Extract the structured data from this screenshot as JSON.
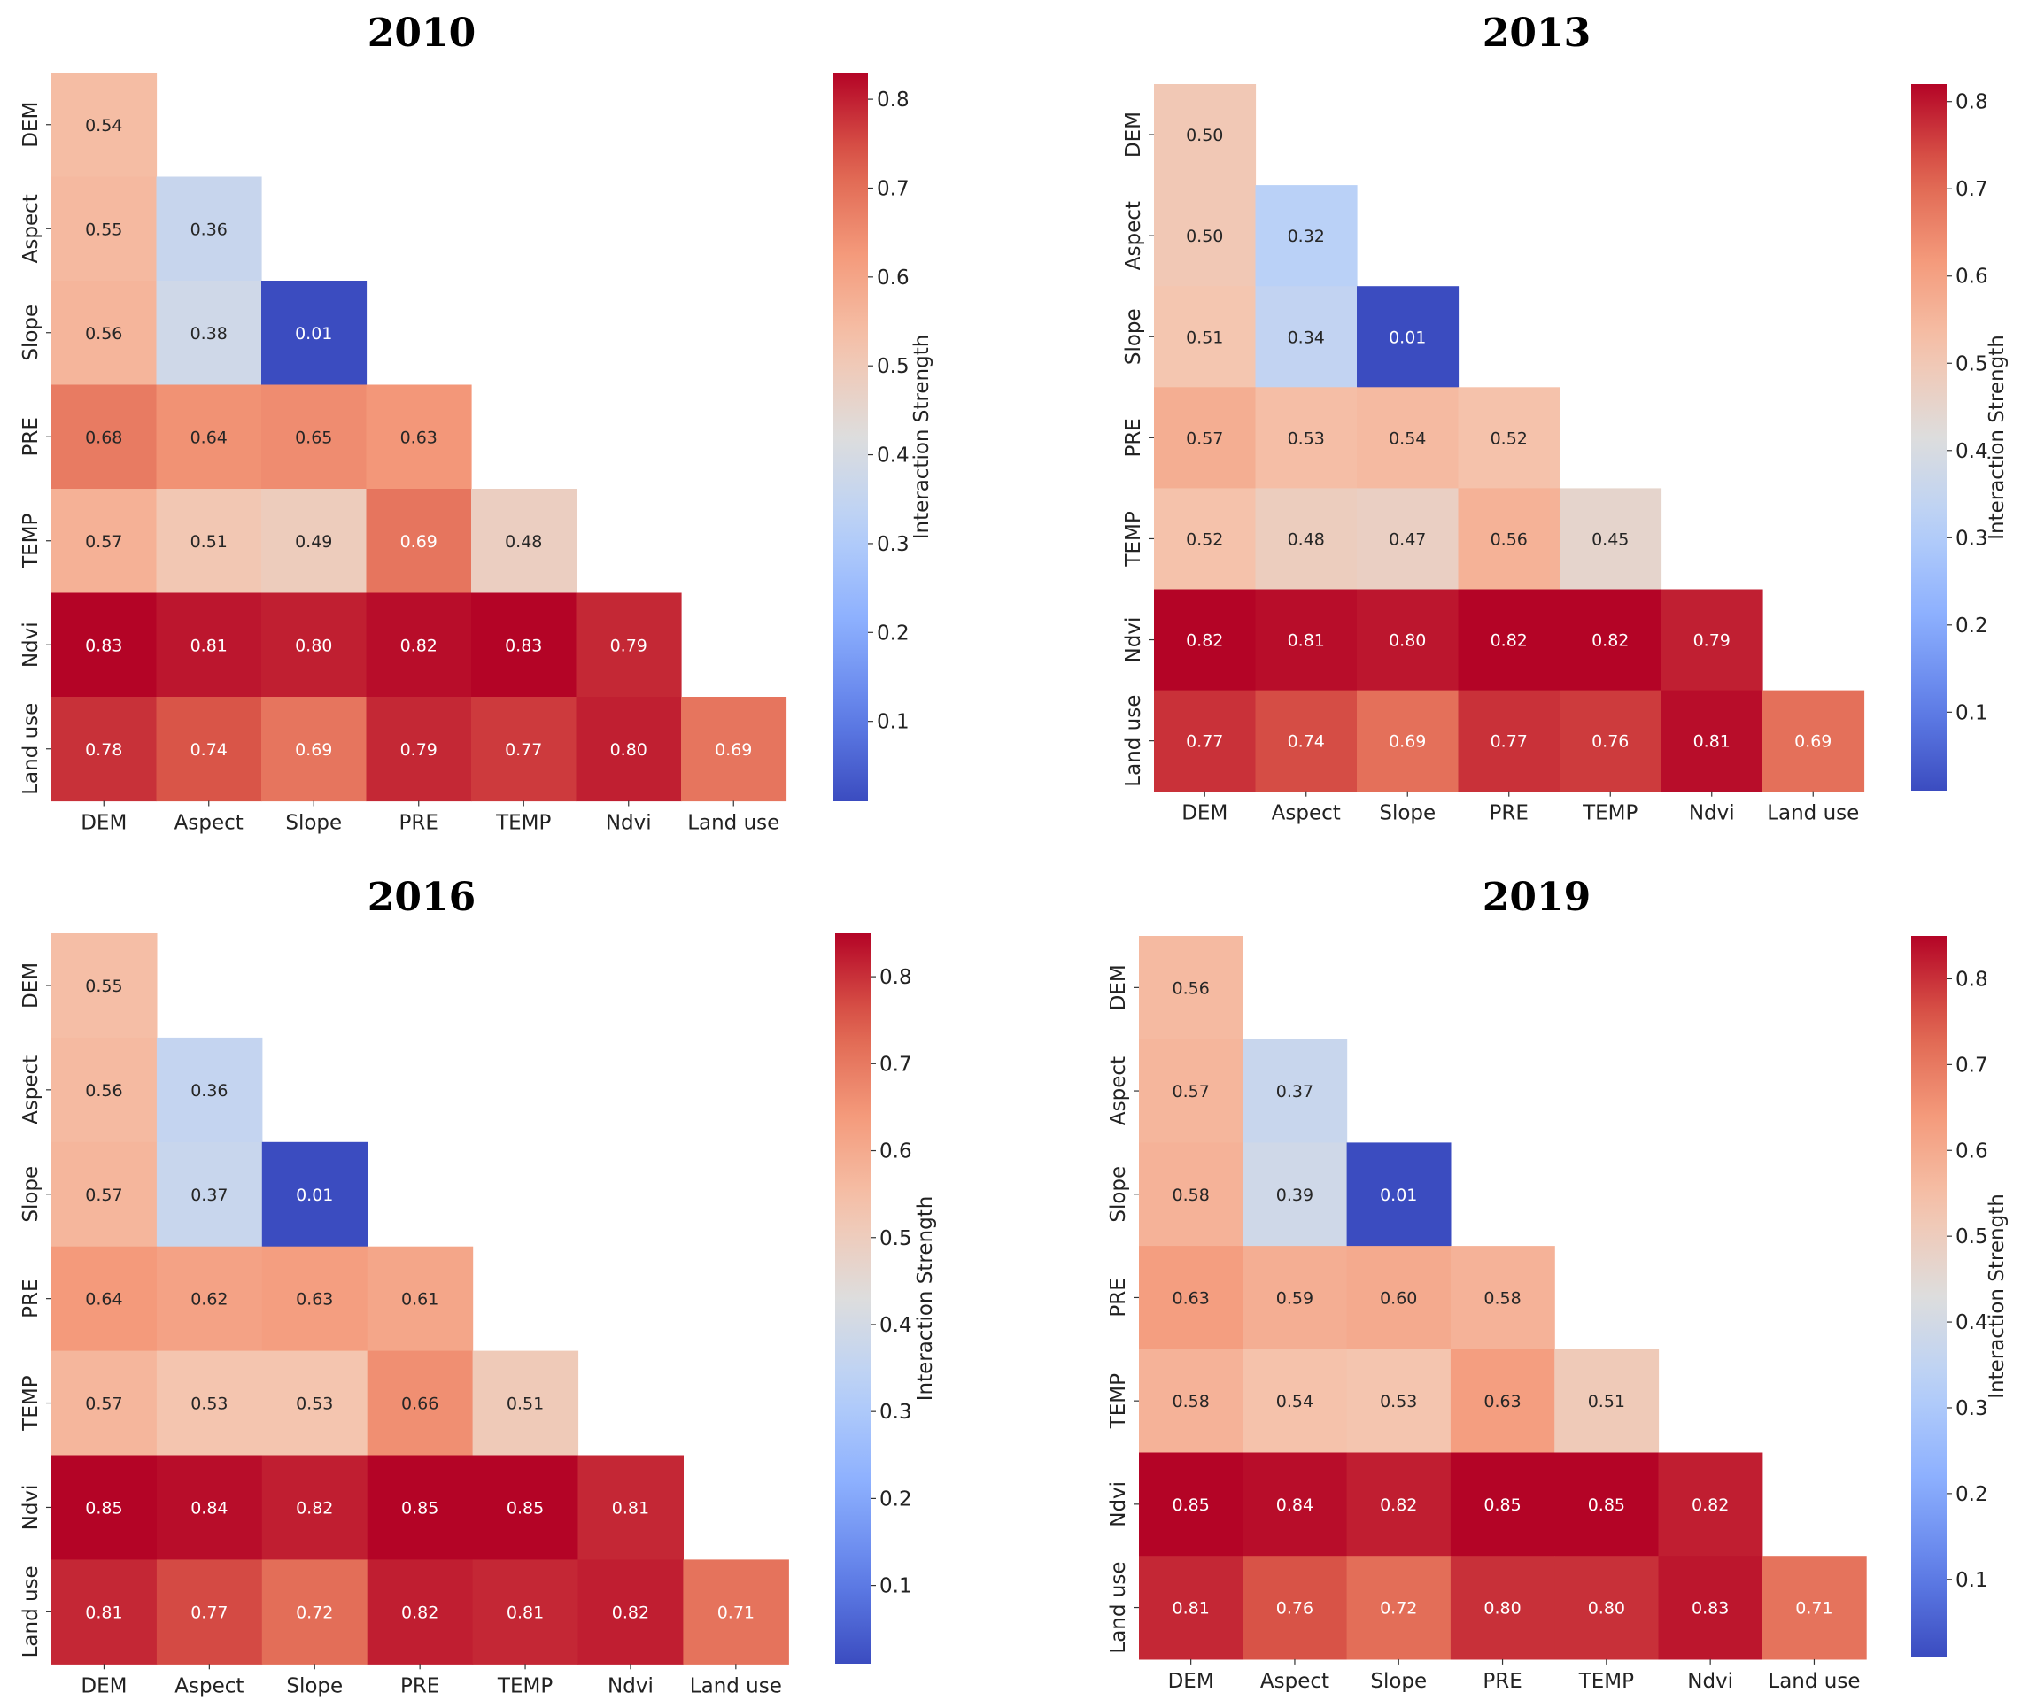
{
  "chart_data": [
    {
      "type": "heatmap",
      "title": "2010",
      "categories": [
        "DEM",
        "Aspect",
        "Slope",
        "PRE",
        "TEMP",
        "Ndvi",
        "Land use"
      ],
      "values": [
        [
          0.54
        ],
        [
          0.55,
          0.36
        ],
        [
          0.56,
          0.38,
          0.01
        ],
        [
          0.68,
          0.64,
          0.65,
          0.63
        ],
        [
          0.57,
          0.51,
          0.49,
          0.69,
          0.48
        ],
        [
          0.83,
          0.81,
          0.8,
          0.82,
          0.83,
          0.79
        ],
        [
          0.78,
          0.74,
          0.69,
          0.79,
          0.77,
          0.8,
          0.69
        ]
      ],
      "value_labels": [
        [
          "0.54"
        ],
        [
          "0.55",
          "0.36"
        ],
        [
          "0.56",
          "0.38",
          "0.01"
        ],
        [
          "0.68",
          "0.64",
          "0.65",
          "0.63"
        ],
        [
          "0.57",
          "0.51",
          "0.49",
          "0.69",
          "0.48"
        ],
        [
          "0.83",
          "0.81",
          "0.80",
          "0.82",
          "0.83",
          "0.79"
        ],
        [
          "0.78",
          "0.74",
          "0.69",
          "0.79",
          "0.77",
          "0.80",
          "0.69"
        ]
      ],
      "colorbar": {
        "label": "Interaction Strength",
        "range": [
          0.01,
          0.83
        ],
        "ticks": [
          "0.1",
          "0.2",
          "0.3",
          "0.4",
          "0.5",
          "0.6",
          "0.7",
          "0.8"
        ],
        "colormap": "coolwarm"
      }
    },
    {
      "type": "heatmap",
      "title": "2013",
      "categories": [
        "DEM",
        "Aspect",
        "Slope",
        "PRE",
        "TEMP",
        "Ndvi",
        "Land use"
      ],
      "values": [
        [
          0.5
        ],
        [
          0.5,
          0.32
        ],
        [
          0.51,
          0.34,
          0.01
        ],
        [
          0.57,
          0.53,
          0.54,
          0.52
        ],
        [
          0.52,
          0.48,
          0.47,
          0.56,
          0.45
        ],
        [
          0.82,
          0.81,
          0.8,
          0.82,
          0.82,
          0.79
        ],
        [
          0.77,
          0.74,
          0.69,
          0.77,
          0.76,
          0.81,
          0.69
        ]
      ],
      "value_labels": [
        [
          "0.50"
        ],
        [
          "0.50",
          "0.32"
        ],
        [
          "0.51",
          "0.34",
          "0.01"
        ],
        [
          "0.57",
          "0.53",
          "0.54",
          "0.52"
        ],
        [
          "0.52",
          "0.48",
          "0.47",
          "0.56",
          "0.45"
        ],
        [
          "0.82",
          "0.81",
          "0.80",
          "0.82",
          "0.82",
          "0.79"
        ],
        [
          "0.77",
          "0.74",
          "0.69",
          "0.77",
          "0.76",
          "0.81",
          "0.69"
        ]
      ],
      "colorbar": {
        "label": "Interaction Strength",
        "range": [
          0.01,
          0.82
        ],
        "ticks": [
          "0.1",
          "0.2",
          "0.3",
          "0.4",
          "0.5",
          "0.6",
          "0.7",
          "0.8"
        ],
        "colormap": "coolwarm"
      }
    },
    {
      "type": "heatmap",
      "title": "2016",
      "categories": [
        "DEM",
        "Aspect",
        "Slope",
        "PRE",
        "TEMP",
        "Ndvi",
        "Land use"
      ],
      "values": [
        [
          0.55
        ],
        [
          0.56,
          0.36
        ],
        [
          0.57,
          0.37,
          0.01
        ],
        [
          0.64,
          0.62,
          0.63,
          0.61
        ],
        [
          0.57,
          0.53,
          0.53,
          0.66,
          0.51
        ],
        [
          0.85,
          0.84,
          0.82,
          0.85,
          0.85,
          0.81
        ],
        [
          0.81,
          0.77,
          0.72,
          0.82,
          0.81,
          0.82,
          0.71
        ]
      ],
      "value_labels": [
        [
          "0.55"
        ],
        [
          "0.56",
          "0.36"
        ],
        [
          "0.57",
          "0.37",
          "0.01"
        ],
        [
          "0.64",
          "0.62",
          "0.63",
          "0.61"
        ],
        [
          "0.57",
          "0.53",
          "0.53",
          "0.66",
          "0.51"
        ],
        [
          "0.85",
          "0.84",
          "0.82",
          "0.85",
          "0.85",
          "0.81"
        ],
        [
          "0.81",
          "0.77",
          "0.72",
          "0.82",
          "0.81",
          "0.82",
          "0.71"
        ]
      ],
      "colorbar": {
        "label": "Interaction Strength",
        "range": [
          0.01,
          0.85
        ],
        "ticks": [
          "0.1",
          "0.2",
          "0.3",
          "0.4",
          "0.5",
          "0.6",
          "0.7",
          "0.8"
        ],
        "colormap": "coolwarm"
      }
    },
    {
      "type": "heatmap",
      "title": "2019",
      "categories": [
        "DEM",
        "Aspect",
        "Slope",
        "PRE",
        "TEMP",
        "Ndvi",
        "Land use"
      ],
      "values": [
        [
          0.56
        ],
        [
          0.57,
          0.37
        ],
        [
          0.58,
          0.39,
          0.01
        ],
        [
          0.63,
          0.59,
          0.6,
          0.58
        ],
        [
          0.58,
          0.54,
          0.53,
          0.63,
          0.51
        ],
        [
          0.85,
          0.84,
          0.82,
          0.85,
          0.85,
          0.82
        ],
        [
          0.81,
          0.76,
          0.72,
          0.8,
          0.8,
          0.83,
          0.71
        ]
      ],
      "value_labels": [
        [
          "0.56"
        ],
        [
          "0.57",
          "0.37"
        ],
        [
          "0.58",
          "0.39",
          "0.01"
        ],
        [
          "0.63",
          "0.59",
          "0.60",
          "0.58"
        ],
        [
          "0.58",
          "0.54",
          "0.53",
          "0.63",
          "0.51"
        ],
        [
          "0.85",
          "0.84",
          "0.82",
          "0.85",
          "0.85",
          "0.82"
        ],
        [
          "0.81",
          "0.76",
          "0.72",
          "0.80",
          "0.80",
          "0.83",
          "0.71"
        ]
      ],
      "colorbar": {
        "label": "Interaction Strength",
        "range": [
          0.01,
          0.85
        ],
        "ticks": [
          "0.1",
          "0.2",
          "0.3",
          "0.4",
          "0.5",
          "0.6",
          "0.7",
          "0.8"
        ],
        "colormap": "coolwarm"
      }
    }
  ]
}
